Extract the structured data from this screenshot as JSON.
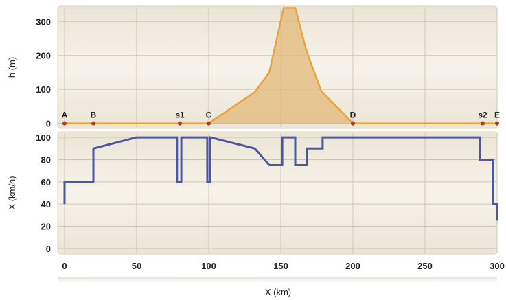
{
  "colors": {
    "panel_bg": "#f4efe4",
    "panel_border": "#d9d2c2",
    "grid": "#cfc6b2",
    "elevation_fill": "#e2b877",
    "elevation_line": "#e8a23c",
    "speed_line": "#4b579f",
    "marker": "#b23a2a"
  },
  "chart_data": [
    {
      "type": "area",
      "ylabel": "h (m)",
      "xlim": [
        0,
        300
      ],
      "ylim": [
        -15,
        345
      ],
      "yticks": [
        0,
        100,
        200,
        300
      ],
      "xticks": [
        0,
        50,
        100,
        150,
        200,
        250,
        300
      ],
      "grid": true,
      "series": [
        {
          "x": [
            0,
            100,
            132,
            142,
            152,
            160,
            168,
            178,
            200,
            300
          ],
          "y": [
            0,
            0,
            92,
            150,
            340,
            340,
            210,
            95,
            0,
            0
          ]
        }
      ],
      "markers": [
        {
          "label": "A",
          "x": 0
        },
        {
          "label": "B",
          "x": 20
        },
        {
          "label": "s1",
          "x": 80
        },
        {
          "label": "C",
          "x": 100
        },
        {
          "label": "D",
          "x": 200
        },
        {
          "label": "s2",
          "x": 290
        },
        {
          "label": "E",
          "x": 300
        }
      ]
    },
    {
      "type": "line",
      "ylabel": "X (km/h)",
      "xlabel": "X (km)",
      "xlim": [
        0,
        300
      ],
      "ylim": [
        -5,
        105
      ],
      "yticks": [
        0,
        20,
        40,
        60,
        80,
        100
      ],
      "xticks": [
        0,
        50,
        100,
        150,
        200,
        250,
        300
      ],
      "xticklabels": [
        "0",
        "50",
        "100",
        "150",
        "200",
        "250",
        "300"
      ],
      "grid": true,
      "series": [
        {
          "step": true,
          "x": [
            0,
            0,
            20,
            20,
            50,
            78,
            78,
            81,
            81,
            99,
            99,
            101,
            101,
            132,
            142,
            151,
            151,
            160,
            160,
            168,
            168,
            179,
            179,
            288,
            288,
            297,
            297,
            300,
            300
          ],
          "y": [
            40,
            60,
            60,
            90,
            100,
            100,
            60,
            60,
            100,
            100,
            60,
            60,
            100,
            90,
            75,
            75,
            100,
            100,
            75,
            75,
            90,
            90,
            100,
            100,
            80,
            80,
            40,
            40,
            25
          ]
        }
      ]
    }
  ]
}
